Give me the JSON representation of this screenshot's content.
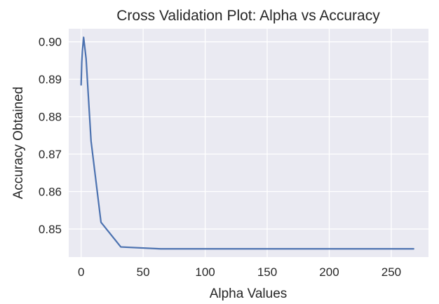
{
  "chart_data": {
    "type": "line",
    "title": "Cross Validation Plot: Alpha vs Accuracy",
    "xlabel": "Alpha Values",
    "ylabel": "Accuracy Obtained",
    "xlim": [
      -10,
      280
    ],
    "ylim": [
      0.8425,
      0.9035
    ],
    "xticks": [
      0,
      50,
      100,
      150,
      200,
      250
    ],
    "xtick_labels": [
      "0",
      "50",
      "100",
      "150",
      "200",
      "250"
    ],
    "yticks": [
      0.85,
      0.86,
      0.87,
      0.88,
      0.89,
      0.9
    ],
    "ytick_labels": [
      "0.85",
      "0.86",
      "0.87",
      "0.88",
      "0.89",
      "0.90"
    ],
    "grid": true,
    "series": [
      {
        "color": "#4c72b0",
        "x": [
          0,
          0.5,
          1,
          2,
          4,
          8,
          16,
          32,
          64,
          128,
          256,
          268
        ],
        "y": [
          0.8885,
          0.8945,
          0.8975,
          0.9012,
          0.8955,
          0.8735,
          0.8518,
          0.8452,
          0.8447,
          0.8447,
          0.8447,
          0.8447
        ]
      }
    ],
    "plot_background": "#eaeaf2",
    "grid_color": "#ffffff"
  }
}
